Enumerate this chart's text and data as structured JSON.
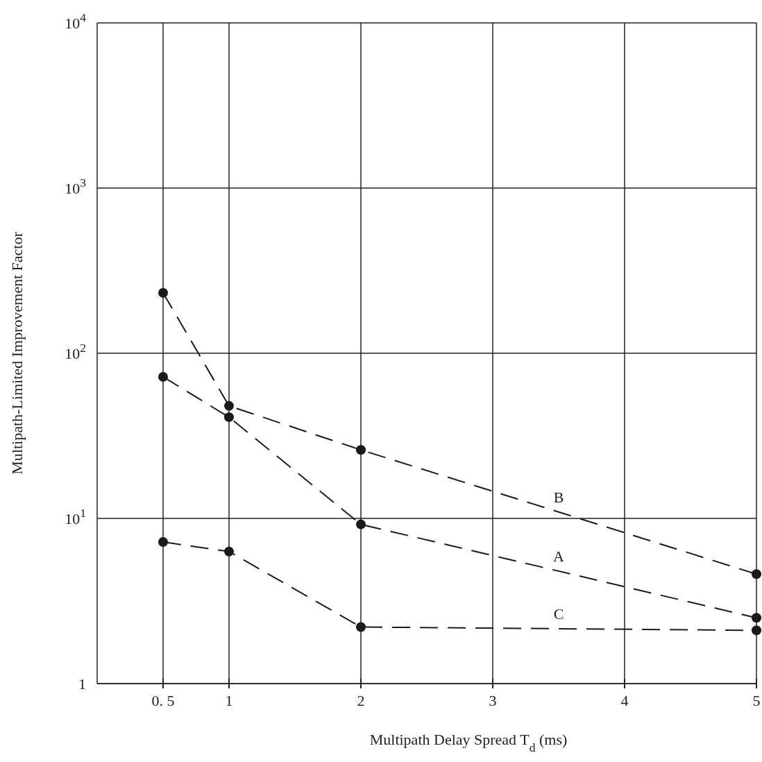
{
  "chart_data": {
    "type": "line",
    "xlabel": "Multipath Delay Spread T$_{d}$   (ms)",
    "ylabel": "Multipath-Limited Improvement Factor",
    "x": [
      0.5,
      1,
      2,
      5
    ],
    "series": [
      {
        "name": "B",
        "color": "#1a1a1a",
        "values": [
          232,
          48,
          26,
          4.6
        ]
      },
      {
        "name": "A",
        "color": "#1a1a1a",
        "values": [
          72,
          41,
          9.2,
          2.5
        ]
      },
      {
        "name": "C",
        "color": "#1a1a1a",
        "values": [
          7.2,
          6.3,
          2.2,
          2.1
        ]
      }
    ],
    "xlim": [
      0,
      5
    ],
    "xticks": [
      {
        "value": 0.5,
        "label": "0. 5"
      },
      1,
      2,
      3,
      4,
      5
    ],
    "ylim": [
      1,
      10000
    ],
    "yticks": [
      1,
      {
        "value": 10,
        "label": "10$^{1}$"
      },
      {
        "value": 100,
        "label": "10$^{2}$"
      },
      {
        "value": 1000,
        "label": "10$^{3}$"
      },
      {
        "value": 10000,
        "label": "10$^{4}$"
      }
    ],
    "log": "y",
    "grid": true,
    "marker": "circle",
    "line_style": "dashed"
  }
}
